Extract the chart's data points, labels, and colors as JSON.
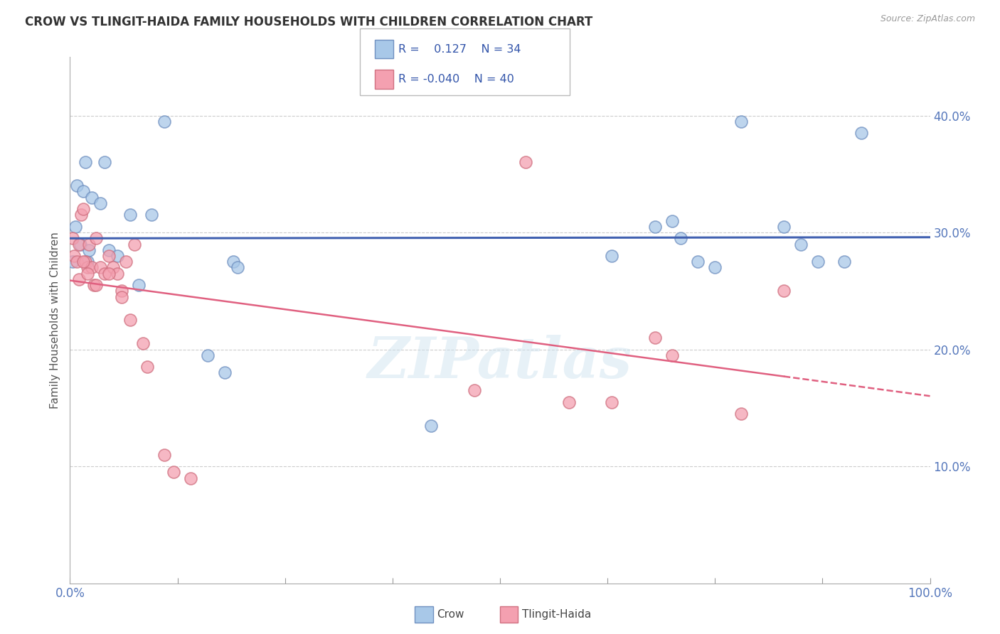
{
  "title": "CROW VS TLINGIT-HAIDA FAMILY HOUSEHOLDS WITH CHILDREN CORRELATION CHART",
  "source": "Source: ZipAtlas.com",
  "ylabel": "Family Households with Children",
  "legend_crow": "Crow",
  "legend_tlingit": "Tlingit-Haida",
  "crow_color": "#a8c8e8",
  "tlingit_color": "#f4a0b0",
  "crow_edge_color": "#7090c0",
  "tlingit_edge_color": "#d07080",
  "crow_line_color": "#4060b0",
  "tlingit_line_color": "#e06080",
  "crow_R": 0.127,
  "crow_N": 34,
  "tlingit_R": -0.04,
  "tlingit_N": 40,
  "crow_scatter": [
    [
      0.3,
      27.5
    ],
    [
      0.6,
      30.5
    ],
    [
      0.8,
      34.0
    ],
    [
      1.2,
      29.0
    ],
    [
      1.5,
      33.5
    ],
    [
      1.8,
      36.0
    ],
    [
      2.0,
      27.5
    ],
    [
      2.2,
      28.5
    ],
    [
      2.5,
      33.0
    ],
    [
      3.5,
      32.5
    ],
    [
      4.0,
      36.0
    ],
    [
      4.5,
      28.5
    ],
    [
      5.5,
      28.0
    ],
    [
      7.0,
      31.5
    ],
    [
      8.0,
      25.5
    ],
    [
      9.5,
      31.5
    ],
    [
      11.0,
      39.5
    ],
    [
      16.0,
      19.5
    ],
    [
      18.0,
      18.0
    ],
    [
      19.0,
      27.5
    ],
    [
      19.5,
      27.0
    ],
    [
      42.0,
      13.5
    ],
    [
      63.0,
      28.0
    ],
    [
      68.0,
      30.5
    ],
    [
      70.0,
      31.0
    ],
    [
      71.0,
      29.5
    ],
    [
      73.0,
      27.5
    ],
    [
      75.0,
      27.0
    ],
    [
      78.0,
      39.5
    ],
    [
      83.0,
      30.5
    ],
    [
      85.0,
      29.0
    ],
    [
      87.0,
      27.5
    ],
    [
      90.0,
      27.5
    ],
    [
      92.0,
      38.5
    ]
  ],
  "tlingit_scatter": [
    [
      0.3,
      29.5
    ],
    [
      0.5,
      28.0
    ],
    [
      0.8,
      27.5
    ],
    [
      1.0,
      29.0
    ],
    [
      1.3,
      31.5
    ],
    [
      1.5,
      32.0
    ],
    [
      1.8,
      27.5
    ],
    [
      2.0,
      27.0
    ],
    [
      2.2,
      29.0
    ],
    [
      2.5,
      27.0
    ],
    [
      2.8,
      25.5
    ],
    [
      3.0,
      29.5
    ],
    [
      3.5,
      27.0
    ],
    [
      4.0,
      26.5
    ],
    [
      4.5,
      28.0
    ],
    [
      5.0,
      27.0
    ],
    [
      5.5,
      26.5
    ],
    [
      6.0,
      25.0
    ],
    [
      6.5,
      27.5
    ],
    [
      7.5,
      29.0
    ],
    [
      1.0,
      26.0
    ],
    [
      1.5,
      27.5
    ],
    [
      2.0,
      26.5
    ],
    [
      3.0,
      25.5
    ],
    [
      4.5,
      26.5
    ],
    [
      6.0,
      24.5
    ],
    [
      7.0,
      22.5
    ],
    [
      8.5,
      20.5
    ],
    [
      9.0,
      18.5
    ],
    [
      11.0,
      11.0
    ],
    [
      12.0,
      9.5
    ],
    [
      14.0,
      9.0
    ],
    [
      47.0,
      16.5
    ],
    [
      53.0,
      36.0
    ],
    [
      58.0,
      15.5
    ],
    [
      63.0,
      15.5
    ],
    [
      68.0,
      21.0
    ],
    [
      70.0,
      19.5
    ],
    [
      78.0,
      14.5
    ],
    [
      83.0,
      25.0
    ]
  ],
  "xlim": [
    0,
    100
  ],
  "ylim": [
    0,
    45
  ],
  "yticks": [
    10,
    20,
    30,
    40
  ],
  "ytick_labels": [
    "10.0%",
    "20.0%",
    "30.0%",
    "40.0%"
  ],
  "xtick_positions": [
    0,
    12.5,
    25,
    37.5,
    50,
    62.5,
    75,
    87.5,
    100
  ],
  "grid_color": "#cccccc",
  "watermark": "ZIPatlas",
  "background_color": "#ffffff"
}
